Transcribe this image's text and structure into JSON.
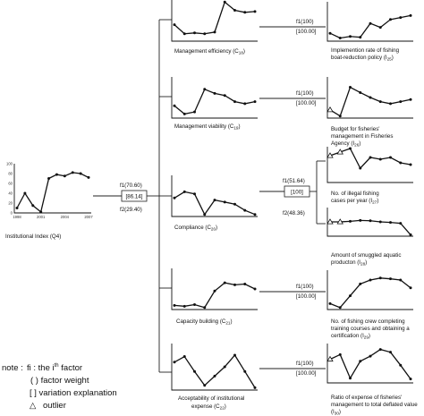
{
  "source": {
    "label": "Institutional Index (Q4)",
    "y_ticks": [
      "0",
      "20",
      "40",
      "60",
      "80",
      "100"
    ],
    "x_ticks": [
      "1998",
      "2001",
      "2004",
      "2007"
    ],
    "values": [
      10,
      40,
      15,
      2,
      70,
      78,
      75,
      82,
      80,
      72
    ]
  },
  "root_factor": {
    "f1": "f1(70.60)",
    "variation": "[86.14]",
    "f2": "f2(29.40)"
  },
  "components": [
    {
      "label": "Management efficiency (C",
      "sub": "18",
      "close": ")",
      "values": [
        40,
        18,
        20,
        18,
        22,
        95,
        75,
        70,
        72
      ]
    },
    {
      "label": "Management viability (C",
      "sub": "19",
      "close": ")",
      "values": [
        30,
        10,
        15,
        70,
        60,
        55,
        40,
        35,
        40
      ]
    },
    {
      "label": "Compliance (C",
      "sub": "20",
      "close": ")",
      "values": [
        45,
        60,
        55,
        5,
        40,
        35,
        30,
        15,
        5
      ]
    },
    {
      "label": "Capacity building (C",
      "sub": "21",
      "close": ")",
      "values": [
        10,
        8,
        12,
        5,
        45,
        65,
        60,
        62,
        50
      ]
    },
    {
      "label": "Acceptability of institutional expense (C",
      "sub": "22",
      "close": ")",
      "values": [
        60,
        72,
        40,
        10,
        30,
        50,
        75,
        40,
        5
      ]
    }
  ],
  "component_factors": [
    {
      "f1": "f1(100)",
      "variation": "[100.00]"
    },
    {
      "f1": "f1(100)",
      "variation": "[100.00]"
    },
    {
      "f1": "f1(51.64)",
      "variation": "[100]",
      "f2": "f2(48.36)"
    },
    {
      "f1": "f1(100)",
      "variation": "[100.00]"
    },
    {
      "f1": "f1(100)",
      "variation": "[100.00]"
    }
  ],
  "indicators": [
    {
      "label": "Implemention rate of fishing boat-reduction policy (I",
      "sub": "25",
      "close": ")",
      "values": [
        20,
        8,
        12,
        10,
        45,
        35,
        55,
        60,
        65
      ],
      "outliers": []
    },
    {
      "label": "Budget for fisheries' management in Fisheries Agency (I",
      "sub": "26",
      "close": ")",
      "values": [
        20,
        5,
        75,
        62,
        50,
        40,
        35,
        40,
        45
      ],
      "outliers": [
        0
      ]
    },
    {
      "label": "No. of illegal fishing cases per year (I",
      "sub": "27",
      "close": ")",
      "values": [
        75,
        85,
        95,
        40,
        70,
        65,
        70,
        55,
        50
      ],
      "outliers": [
        0,
        1
      ]
    },
    {
      "label": "Amount of smuggled aquatic producton (I",
      "sub": "28",
      "close": ")",
      "values": [
        50,
        50,
        52,
        55,
        54,
        50,
        48,
        45,
        5
      ],
      "outliers": [
        0,
        1
      ]
    },
    {
      "label": "No. of fishing crew completing training courses and obtaining a certification (I",
      "sub": "29",
      "close": ")",
      "values": [
        15,
        5,
        35,
        65,
        75,
        80,
        78,
        75,
        55
      ],
      "outliers": []
    },
    {
      "label": "Ratio of expense of fisheries' management to total deflated value (I",
      "sub": "30",
      "close": ")",
      "values": [
        60,
        72,
        12,
        55,
        68,
        85,
        78,
        45,
        10
      ],
      "outliers": [
        0
      ]
    }
  ],
  "legend": {
    "title": "note :",
    "fi": "fi : the i",
    "fi_sup": "th",
    "fi_tail": " factor",
    "weight": "( ) factor weight",
    "variation": "[ ] variation explanation",
    "outlier_symbol": "△",
    "outlier": "outlier"
  }
}
